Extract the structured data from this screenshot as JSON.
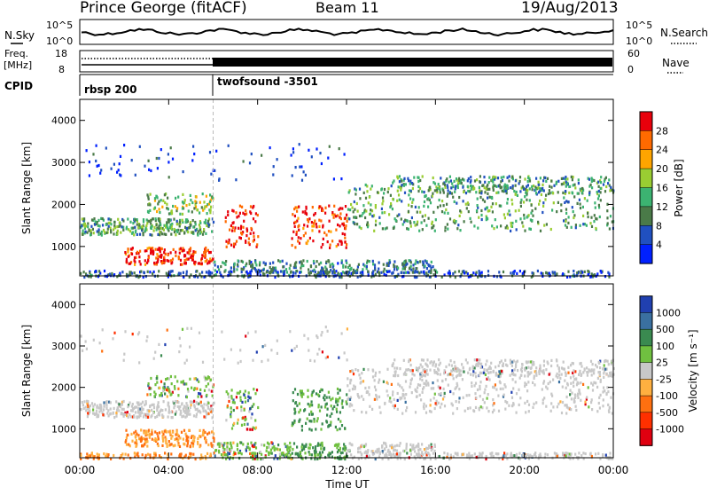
{
  "header": {
    "station": "Prince George (fitACF)",
    "beam": "Beam 11",
    "date": "19/Aug/2013"
  },
  "top_panels": {
    "noise": {
      "label": "N.Sky",
      "tick_top": "10^5",
      "tick_bottom": "10^0",
      "tick_top_right": "10^5",
      "tick_bottom_right": "10^0",
      "right_label": "N.Search"
    },
    "freq": {
      "label_line1": "Freq.",
      "label_line2": "[MHz]",
      "tick_top": "18",
      "tick_bottom": "8",
      "tick_top_right": "60",
      "tick_bottom_right": "0",
      "right_label": "Nave"
    },
    "cpid": {
      "label": "CPID",
      "segment1": "rbsp 200",
      "segment2": "twofsound -3501"
    }
  },
  "chart_data": [
    {
      "type": "heatmap",
      "name": "power",
      "ylabel": "Slant Range [km]",
      "yticks": [
        "4000",
        "3000",
        "2000",
        "1000"
      ],
      "ylim": [
        300,
        4500
      ],
      "xlim": [
        0,
        24
      ],
      "colorbar": {
        "label": "Power [dB]",
        "ticks": [
          "28",
          "24",
          "20",
          "16",
          "12",
          "8",
          "4"
        ],
        "colors": [
          "#e8000b",
          "#ff6a00",
          "#ffa500",
          "#9acd32",
          "#3cb371",
          "#4a7a48",
          "#2050c0",
          "#0020ff"
        ]
      }
    },
    {
      "type": "heatmap",
      "name": "velocity",
      "ylabel": "Slant Range [km]",
      "yticks": [
        "4000",
        "3000",
        "2000",
        "1000"
      ],
      "ylim": [
        300,
        4500
      ],
      "xlim": [
        0,
        24
      ],
      "xticks": [
        "00:00",
        "04:00",
        "08:00",
        "12:00",
        "16:00",
        "20:00",
        "00:00"
      ],
      "xlabel": "Time UT",
      "colorbar": {
        "label": "Velocity [m s⁻¹]",
        "ticks": [
          "1000",
          "500",
          "100",
          "25",
          "-25",
          "-100",
          "-500",
          "-1000"
        ],
        "colors": [
          "#2040b0",
          "#3a70a0",
          "#3a8a50",
          "#70c040",
          "#c8c8c8",
          "#ffb040",
          "#ff7010",
          "#ff3000",
          "#e00010"
        ]
      }
    }
  ]
}
